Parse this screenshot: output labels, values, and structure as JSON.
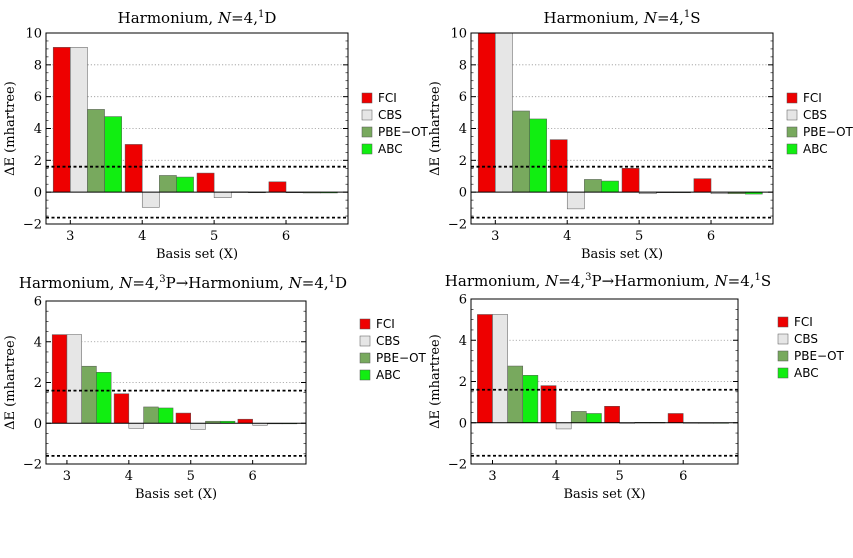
{
  "colors": {
    "FCI": "#ee0000",
    "CBS": "#e6e6e6",
    "PBE-OT": "#78a95e",
    "ABC": "#11ee11",
    "axis": "#000000",
    "grid": "#999999"
  },
  "chart_data": [
    {
      "type": "bar",
      "title": "Harmonium, N=4,¹D",
      "title_parts": [
        "Harmonium, ",
        "N",
        "=4,",
        "1",
        "D"
      ],
      "xlabel": "Basis set (X)",
      "ylabel": "ΔE (mhartree)",
      "categories": [
        "3",
        "4",
        "5",
        "6"
      ],
      "ylim": [
        -2,
        10
      ],
      "yticks": [
        "−2",
        "0",
        "2",
        "4",
        "6",
        "8",
        "10"
      ],
      "ytick_values": [
        -2,
        0,
        2,
        4,
        6,
        8,
        10
      ],
      "threshold": 1.6,
      "grid": "horizontal dotted",
      "legend_position": "right",
      "series": [
        {
          "name": "FCI",
          "values": [
            9.1,
            3.0,
            1.2,
            0.65
          ]
        },
        {
          "name": "CBS",
          "values": [
            9.1,
            -0.95,
            -0.35,
            0.0
          ]
        },
        {
          "name": "PBE−OT",
          "values": [
            5.2,
            1.05,
            0.02,
            -0.05
          ]
        },
        {
          "name": "ABC",
          "values": [
            4.75,
            0.95,
            0.0,
            -0.05
          ]
        }
      ]
    },
    {
      "type": "bar",
      "title": "Harmonium, N=4,¹S",
      "title_parts": [
        "Harmonium, ",
        "N",
        "=4,",
        "1",
        "S"
      ],
      "xlabel": "Basis set (X)",
      "ylabel": "ΔE (mhartree)",
      "categories": [
        "3",
        "4",
        "5",
        "6"
      ],
      "ylim": [
        -2,
        10
      ],
      "yticks": [
        "−2",
        "0",
        "2",
        "4",
        "6",
        "8",
        "10"
      ],
      "ytick_values": [
        -2,
        0,
        2,
        4,
        6,
        8,
        10
      ],
      "threshold": 1.6,
      "grid": "horizontal dotted",
      "legend_position": "right",
      "series": [
        {
          "name": "FCI",
          "values": [
            10.0,
            3.3,
            1.5,
            0.85
          ]
        },
        {
          "name": "CBS",
          "values": [
            10.0,
            -1.05,
            -0.1,
            -0.1
          ]
        },
        {
          "name": "PBE−OT",
          "values": [
            5.1,
            0.8,
            0.0,
            -0.1
          ]
        },
        {
          "name": "ABC",
          "values": [
            4.6,
            0.7,
            0.0,
            -0.12
          ]
        }
      ]
    },
    {
      "type": "bar",
      "title": "Harmonium, N=4,³P→Harmonium, N=4,¹D",
      "title_parts": [
        "Harmonium, ",
        "N",
        "=4,",
        "3",
        "P→Harmonium, ",
        "N",
        "=4,",
        "1",
        "D"
      ],
      "xlabel": "Basis set (X)",
      "ylabel": "ΔE (mhartree)",
      "categories": [
        "3",
        "4",
        "5",
        "6"
      ],
      "ylim": [
        -2,
        6
      ],
      "yticks": [
        "−2",
        "0",
        "2",
        "4",
        "6"
      ],
      "ytick_values": [
        -2,
        0,
        2,
        4,
        6
      ],
      "threshold": 1.6,
      "grid": "horizontal dotted",
      "legend_position": "right",
      "series": [
        {
          "name": "FCI",
          "values": [
            4.35,
            1.45,
            0.5,
            0.2
          ]
        },
        {
          "name": "CBS",
          "values": [
            4.35,
            -0.25,
            -0.3,
            -0.1
          ]
        },
        {
          "name": "PBE−OT",
          "values": [
            2.8,
            0.8,
            0.1,
            0.0
          ]
        },
        {
          "name": "ABC",
          "values": [
            2.5,
            0.75,
            0.1,
            0.0
          ]
        }
      ]
    },
    {
      "type": "bar",
      "title": "Harmonium, N=4,³P→Harmonium, N=4,¹S",
      "title_parts": [
        "Harmonium, ",
        "N",
        "=4,",
        "3",
        "P→Harmonium, ",
        "N",
        "=4,",
        "1",
        "S"
      ],
      "xlabel": "Basis set (X)",
      "ylabel": "ΔE (mhartree)",
      "categories": [
        "3",
        "4",
        "5",
        "6"
      ],
      "ylim": [
        -2,
        6
      ],
      "yticks": [
        "−2",
        "0",
        "2",
        "4",
        "6"
      ],
      "ytick_values": [
        -2,
        0,
        2,
        4,
        6
      ],
      "threshold": 1.6,
      "grid": "horizontal dotted",
      "legend_position": "right",
      "series": [
        {
          "name": "FCI",
          "values": [
            5.25,
            1.8,
            0.8,
            0.45
          ]
        },
        {
          "name": "CBS",
          "values": [
            5.25,
            -0.3,
            0.0,
            0.0
          ]
        },
        {
          "name": "PBE−OT",
          "values": [
            2.75,
            0.55,
            0.02,
            -0.03
          ]
        },
        {
          "name": "ABC",
          "values": [
            2.3,
            0.45,
            0.02,
            -0.03
          ]
        }
      ]
    }
  ]
}
